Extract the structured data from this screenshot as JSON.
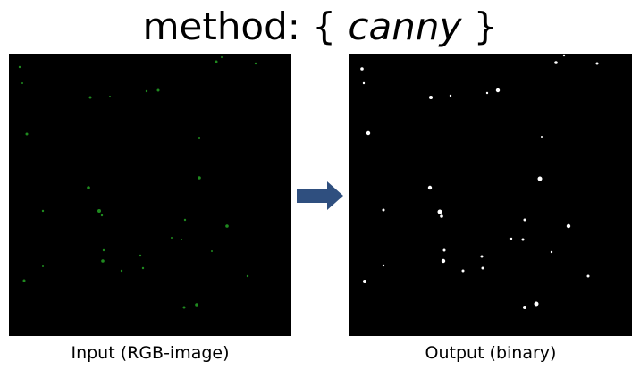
{
  "title": {
    "prefix": "method: {",
    "method": "canny",
    "suffix": "}"
  },
  "input": {
    "caption": "Input (RGB-image)",
    "background": "#000000",
    "spot_color": "#1f8a1f"
  },
  "output": {
    "caption": "Output (binary)",
    "background": "#000000",
    "spot_color": "#ffffff"
  },
  "arrow": {
    "icon": "right-arrow-icon",
    "color": "#2f4f7f"
  }
}
